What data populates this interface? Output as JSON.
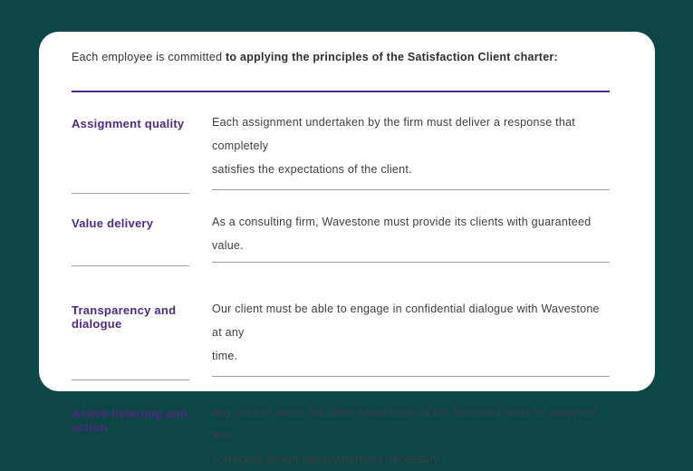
{
  "theme": {
    "background": "#0c4646",
    "card_background": "#ffffff",
    "accent_purple": "#4e2a7e",
    "divider_gray": "#a09aac",
    "body_text": "#3d3d44"
  },
  "header": {
    "intro_regular": "Each employee is committed ",
    "intro_bold": "to applying the principles of the Satisfaction Client charter:"
  },
  "rows": [
    {
      "title": "Assignment quality",
      "body": "Each assignment undertaken by the firm must deliver a response that completely\nsatisfies the expectations of the client."
    },
    {
      "title": "Value delivery",
      "body": "As a consulting firm, Wavestone must provide its clients with guaranteed value."
    },
    {
      "title": "Transparency and\ndialogue",
      "body": "Our client must be able to engage in confidential dialogue with Wavestone at any\ntime."
    },
    {
      "title": "Active listening and\naction",
      "body": "Any area in which full client satisfaction is not delivered must be analyzed, and\ncorrective action taken wherever necessary."
    }
  ]
}
